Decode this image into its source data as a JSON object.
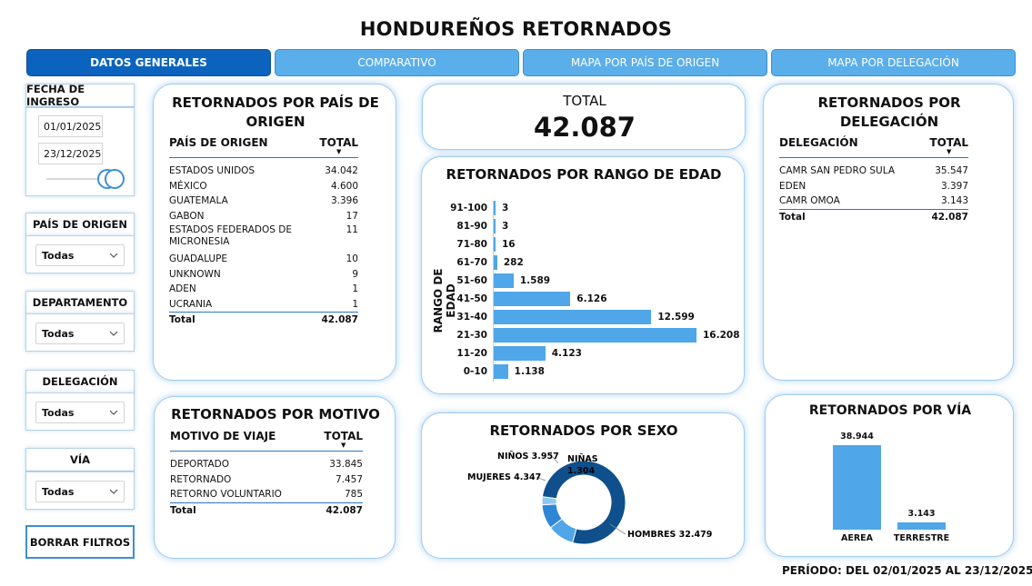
{
  "title": "HONDUREÑOS RETORNADOS",
  "tabs": [
    {
      "label": "DATOS GENERALES"
    },
    {
      "label": "COMPARATIVO"
    },
    {
      "label": "MAPA POR PAÍS DE ORIGEN"
    },
    {
      "label": "MAPA POR DELEGACIÓN"
    }
  ],
  "filters": {
    "fecha": {
      "label": "FECHA DE INGRESO",
      "start": "01/01/2025",
      "end": "23/12/2025"
    },
    "pais": {
      "label": "PAÍS DE ORIGEN",
      "value": "Todas"
    },
    "departamento": {
      "label": "DEPARTAMENTO",
      "value": "Todas"
    },
    "delegacion": {
      "label": "DELEGACIÓN",
      "value": "Todas"
    },
    "via": {
      "label": "VÍA",
      "value": "Todas"
    },
    "clear_label": "BORRAR FILTROS"
  },
  "pais_card": {
    "title": "RETORNADOS POR PAÍS DE ORIGEN",
    "col1": "PAÍS DE ORIGEN",
    "col2": "TOTAL",
    "rows": [
      {
        "name": "ESTADOS UNIDOS",
        "value": "34.042"
      },
      {
        "name": "MÉXICO",
        "value": "4.600"
      },
      {
        "name": "GUATEMALA",
        "value": "3.396"
      },
      {
        "name": "GABON",
        "value": "17"
      },
      {
        "name": "ESTADOS FEDERADOS DE MICRONESIA",
        "value": "11"
      },
      {
        "name": "GUADALUPE",
        "value": "10"
      },
      {
        "name": "UNKNOWN",
        "value": "9"
      },
      {
        "name": "ADEN",
        "value": "1"
      },
      {
        "name": "UCRANIA",
        "value": "1"
      }
    ],
    "total_label": "Total",
    "total_value": "42.087"
  },
  "total_card": {
    "label": "TOTAL",
    "value": "42.087"
  },
  "edad_card": {
    "title": "RETORNADOS POR RANGO DE EDAD",
    "axis_label": "RANGO DE EDAD"
  },
  "delegacion_card": {
    "title": "RETORNADOS POR DELEGACIÓN",
    "col1": "DELEGACIÓN",
    "col2": "TOTAL",
    "rows": [
      {
        "name": "CAMR SAN PEDRO SULA",
        "value": "35.547"
      },
      {
        "name": "EDEN",
        "value": "3.397"
      },
      {
        "name": "CAMR OMOA",
        "value": "3.143"
      }
    ],
    "total_label": "Total",
    "total_value": "42.087"
  },
  "motivo_card": {
    "title": "RETORNADOS POR MOTIVO",
    "col1": "MOTIVO DE VIAJE",
    "col2": "TOTAL",
    "rows": [
      {
        "name": "DEPORTADO",
        "value": "33.845"
      },
      {
        "name": "RETORNADO",
        "value": "7.457"
      },
      {
        "name": "RETORNO VOLUNTARIO",
        "value": "785"
      }
    ],
    "total_label": "Total",
    "total_value": "42.087"
  },
  "sexo_card": {
    "title": "RETORNADOS POR SEXO"
  },
  "via_card": {
    "title": "RETORNADOS POR VÍA"
  },
  "footer": {
    "period_label": "PERÍODO: DEL",
    "start": "02/01/2025",
    "al": "AL",
    "end": "23/12/2025"
  },
  "colors": {
    "primary": "#0b63be",
    "accent": "#4fa6e8",
    "dark": "#0e4f8c",
    "light": "#5aaeea"
  },
  "chart_data": [
    {
      "type": "bar",
      "orientation": "horizontal",
      "title": "RETORNADOS POR RANGO DE EDAD",
      "ylabel": "RANGO DE EDAD",
      "categories": [
        "91-100",
        "81-90",
        "71-80",
        "61-70",
        "51-60",
        "41-50",
        "31-40",
        "21-30",
        "11-20",
        "0-10"
      ],
      "values": [
        3,
        3,
        16,
        282,
        1589,
        6126,
        12599,
        16208,
        4123,
        1138
      ],
      "labels": [
        "3",
        "3",
        "16",
        "282",
        "1.589",
        "6.126",
        "12.599",
        "16.208",
        "4.123",
        "1.138"
      ]
    },
    {
      "type": "pie",
      "subtype": "donut",
      "title": "RETORNADOS POR SEXO",
      "categories": [
        "HOMBRES",
        "MUJERES",
        "NIÑOS",
        "NIÑAS"
      ],
      "values": [
        32479,
        4347,
        3957,
        1304
      ],
      "labels": [
        "HOMBRES 32.479",
        "MUJERES 4.347",
        "NIÑOS 3.957",
        "NIÑAS 1.304"
      ],
      "colors": [
        "#0e4f8c",
        "#4fa6e8",
        "#2e86d6",
        "#8cc8f2"
      ]
    },
    {
      "type": "bar",
      "title": "RETORNADOS POR VÍA",
      "categories": [
        "AEREA",
        "TERRESTRE"
      ],
      "values": [
        38944,
        3143
      ],
      "labels": [
        "38.944",
        "3.143"
      ]
    }
  ]
}
